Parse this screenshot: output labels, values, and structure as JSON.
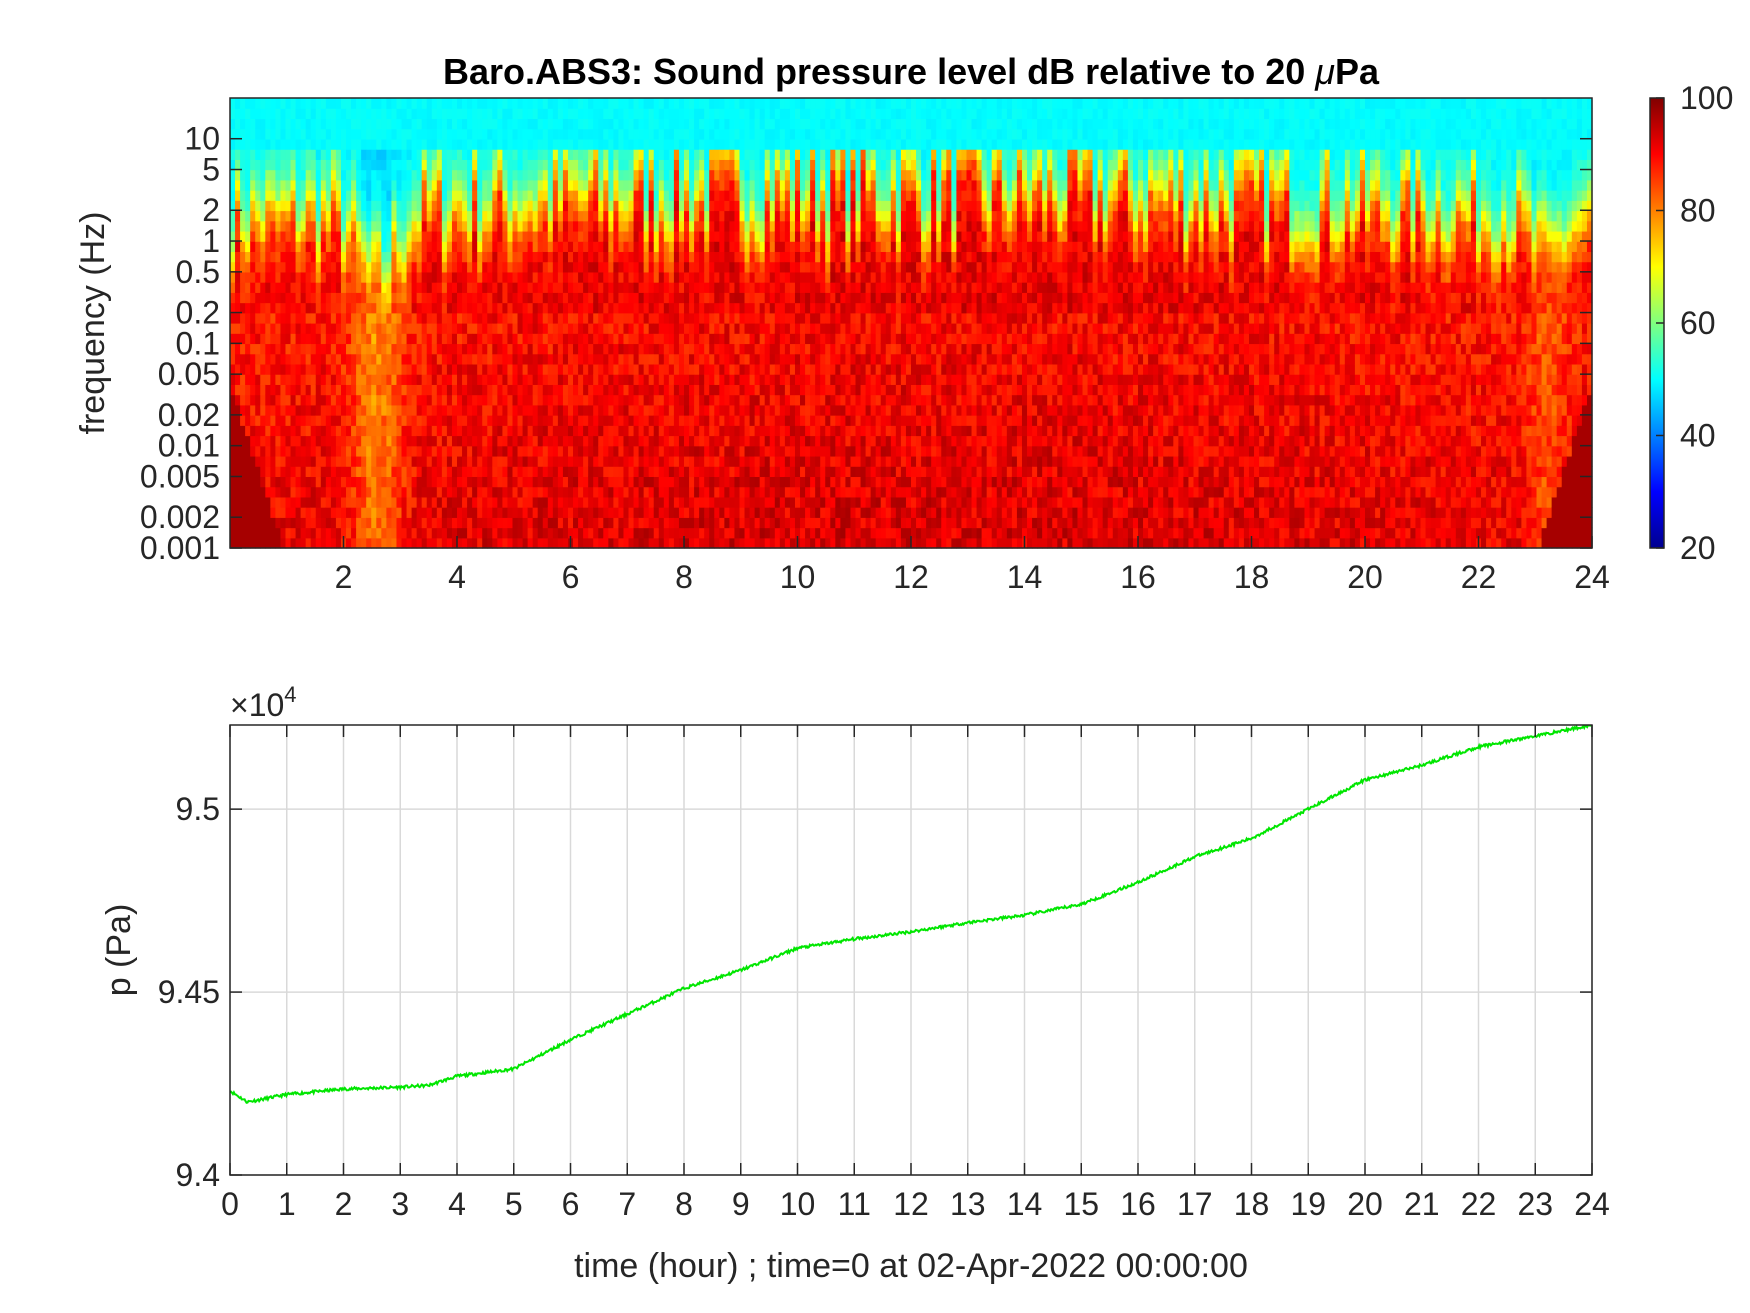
{
  "chart_data": [
    {
      "type": "heatmap",
      "title_main": "Baro.ABS3: Sound pressure level dB relative to 20 ",
      "title_mu": "μ",
      "title_unit": "Pa",
      "xlabel": "",
      "ylabel": "frequency (Hz)",
      "xlim": [
        0,
        24
      ],
      "x_ticks": [
        2,
        4,
        6,
        8,
        10,
        12,
        14,
        16,
        18,
        20,
        22,
        24
      ],
      "y_scale": "log",
      "ylim": [
        0.001,
        25
      ],
      "y_ticks": [
        0.001,
        0.002,
        0.005,
        0.01,
        0.02,
        0.05,
        0.1,
        0.2,
        0.5,
        1,
        2,
        5,
        10
      ],
      "y_tick_labels": [
        "0.001",
        "0.002",
        "0.005",
        "0.01",
        "0.02",
        "0.05",
        "0.1",
        "0.2",
        "0.5",
        "1",
        "2",
        "5",
        "10"
      ],
      "colormap": "jet",
      "colorbar": {
        "range": [
          20,
          100
        ],
        "ticks": [
          20,
          40,
          60,
          80,
          100
        ],
        "placement": "right"
      },
      "hotspots": [
        {
          "t": 0.2,
          "f": 0.0015,
          "db": 97
        },
        {
          "t": 23.5,
          "f": 0.0015,
          "db": 96
        },
        {
          "t": 14.5,
          "f": 0.01,
          "db": 95
        },
        {
          "t": 12.5,
          "f": 0.02,
          "db": 94
        },
        {
          "t": 2.6,
          "f": 0.02,
          "db": 70
        },
        {
          "t": 2.5,
          "f": 3,
          "db": 46
        },
        {
          "t": 23.2,
          "f": 3,
          "db": 47
        }
      ]
    },
    {
      "type": "line",
      "xlabel": "time (hour) ; time=0 at 02-Apr-2022 00:00:00",
      "ylabel": "p (Pa)",
      "y_multiplier_prefix": "×10",
      "y_multiplier_exp": "4",
      "xlim": [
        0,
        24
      ],
      "ylim": [
        94000,
        95230
      ],
      "x_ticks": [
        0,
        1,
        2,
        3,
        4,
        5,
        6,
        7,
        8,
        9,
        10,
        11,
        12,
        13,
        14,
        15,
        16,
        17,
        18,
        19,
        20,
        21,
        22,
        23,
        24
      ],
      "y_ticks": [
        94000,
        94500,
        95000
      ],
      "y_tick_labels": [
        "9.4",
        "9.45",
        "9.5"
      ],
      "grid": true,
      "series": [
        {
          "color": "#00e600",
          "x": [
            0,
            0.3,
            0.5,
            1,
            2,
            3,
            3.5,
            4,
            5,
            6,
            7,
            8,
            9,
            10,
            11,
            12,
            13,
            14,
            15,
            16,
            17,
            18,
            19,
            20,
            21,
            22,
            23,
            24
          ],
          "y": [
            94230,
            94200,
            94205,
            94220,
            94235,
            94240,
            94245,
            94270,
            94290,
            94370,
            94440,
            94510,
            94560,
            94620,
            94645,
            94665,
            94690,
            94710,
            94740,
            94800,
            94870,
            94920,
            95000,
            95080,
            95120,
            95170,
            95200,
            95230
          ]
        }
      ]
    }
  ]
}
